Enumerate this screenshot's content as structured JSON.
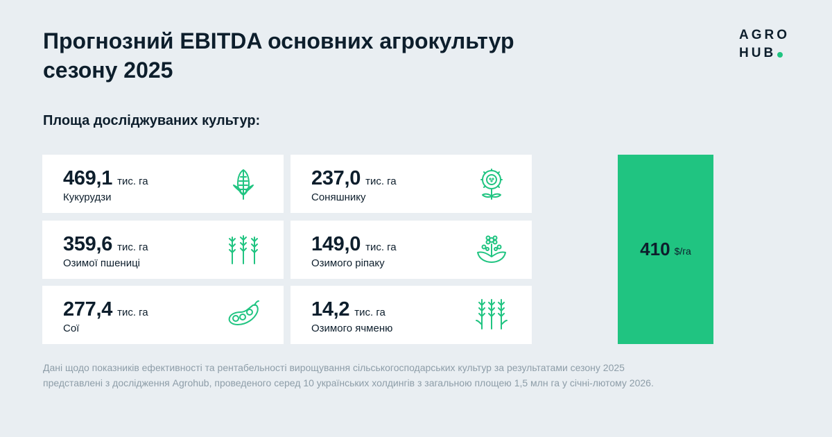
{
  "header": {
    "title_line1": "Прогнозний EBITDA основних агрокультур",
    "title_line2": "сезону 2025"
  },
  "logo": {
    "line1": "AGRO",
    "line2": "HUB"
  },
  "subtitle": "Площа досліджуваних культур:",
  "crops": [
    {
      "value": "469,1",
      "unit": "тис. га",
      "label": "Кукурудзи",
      "icon": "corn-icon"
    },
    {
      "value": "237,0",
      "unit": "тис. га",
      "label": "Соняшнику",
      "icon": "sunflower-icon"
    },
    {
      "value": "359,6",
      "unit": "тис. га",
      "label": "Озимої пшениці",
      "icon": "wheat-icon"
    },
    {
      "value": "149,0",
      "unit": "тис. га",
      "label": "Озимого ріпаку",
      "icon": "rapeseed-icon"
    },
    {
      "value": "277,4",
      "unit": "тис. га",
      "label": "Сої",
      "icon": "soybean-icon"
    },
    {
      "value": "14,2",
      "unit": "тис. га",
      "label": "Озимого ячменю",
      "icon": "barley-icon"
    }
  ],
  "ebitda": {
    "value": "410",
    "unit": "$/га"
  },
  "footnote": {
    "line1": "Дані щодо показників ефективності та рентабельності вирощування сільськогосподарських культур за результатами сезону 2025",
    "line2": "представлені з дослідження Agrohub, проведеного серед 10 українських холдингів з загальною площею 1,5 млн га у січні-лютому 2026."
  },
  "colors": {
    "background": "#e9eef2",
    "accent_green": "#20c481",
    "text_dark": "#0d1e2c",
    "text_muted": "#8d9da8"
  }
}
